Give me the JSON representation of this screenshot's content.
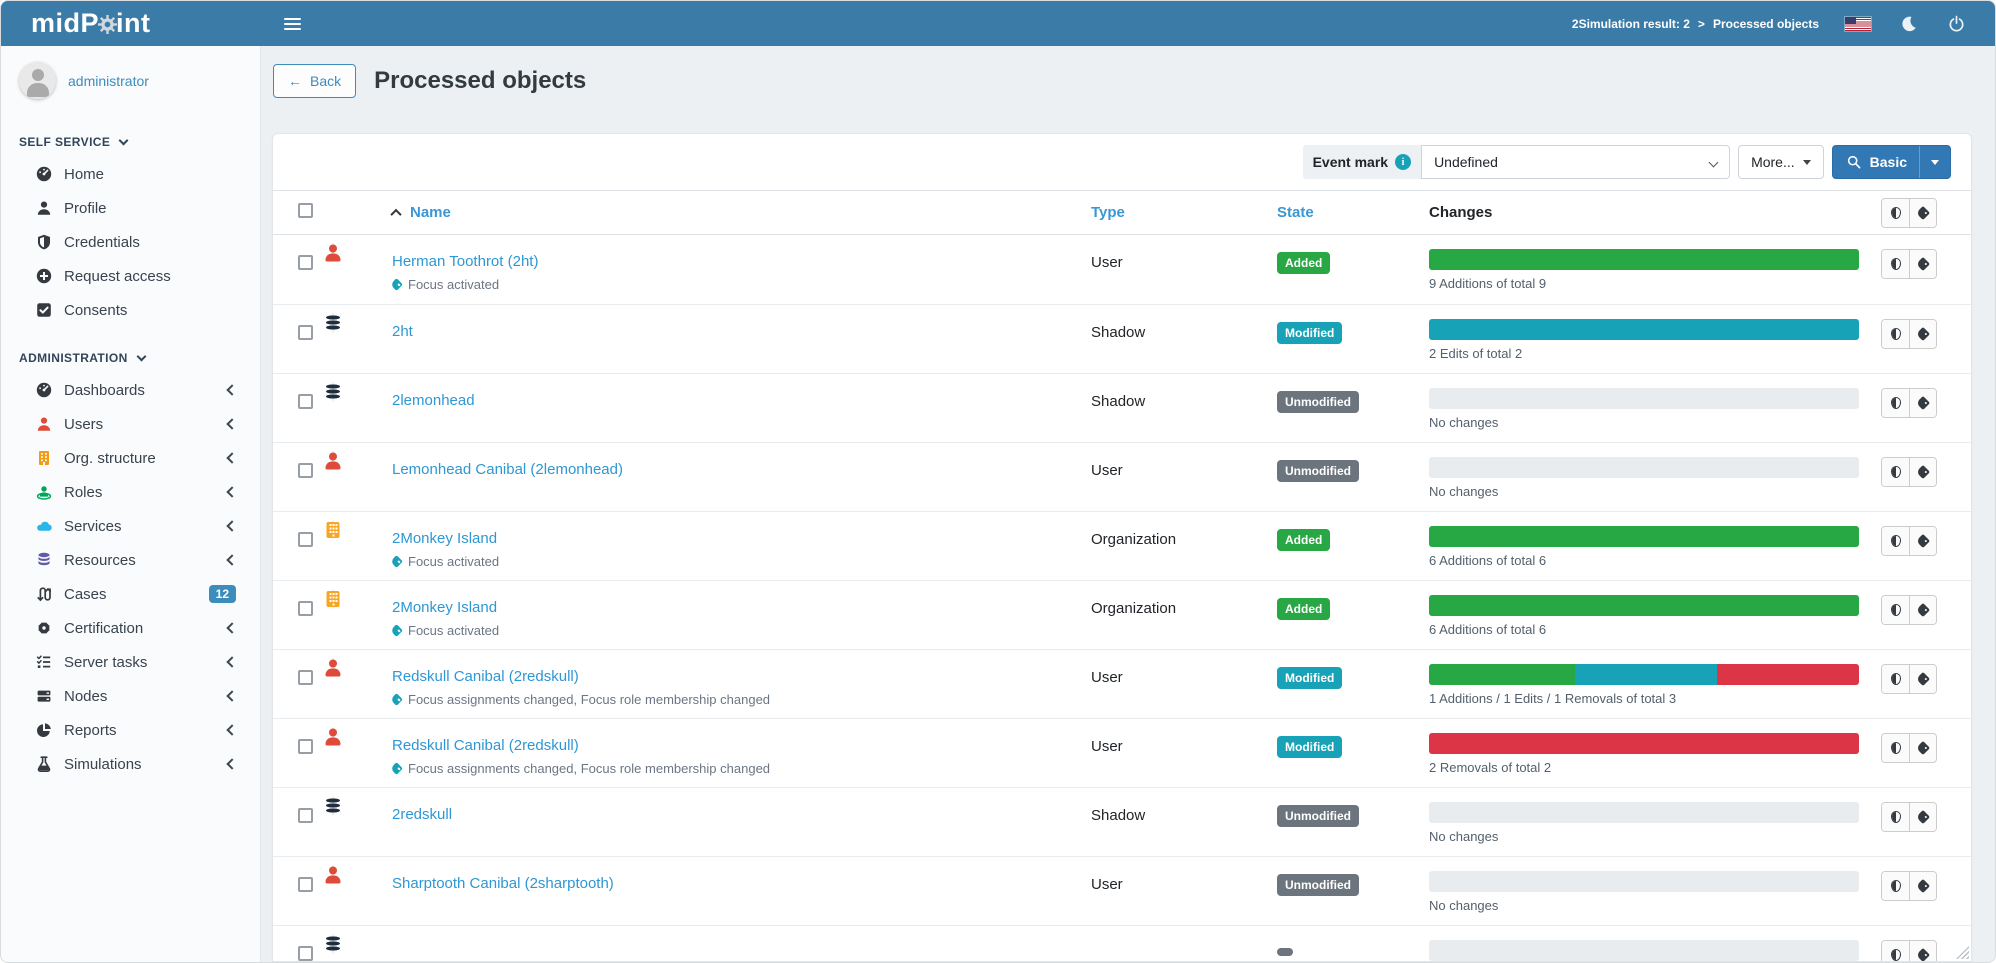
{
  "colors": {
    "topbar": "#3a7ca7",
    "accent": "#3c8dbc",
    "added": "#28a745",
    "modified": "#17a2b8",
    "removed": "#dc3545",
    "unmodified": "#6c757d",
    "empty_track": "#e9ecef"
  },
  "topbar": {
    "logo_pre": "midP",
    "logo_post": "int",
    "breadcrumb": {
      "parent": "2Simulation result: 2",
      "separator": ">",
      "current": "Processed objects"
    }
  },
  "sidebar": {
    "user": "administrator",
    "sections": [
      {
        "label": "SELF SERVICE",
        "items": [
          {
            "label": "Home",
            "icon": "dashboard-icon"
          },
          {
            "label": "Profile",
            "icon": "user-icon"
          },
          {
            "label": "Credentials",
            "icon": "shield-icon"
          },
          {
            "label": "Request access",
            "icon": "plus-circle-icon"
          },
          {
            "label": "Consents",
            "icon": "check-square-icon"
          }
        ]
      },
      {
        "label": "ADMINISTRATION",
        "items": [
          {
            "label": "Dashboards",
            "icon": "dashboard-icon",
            "expandable": true
          },
          {
            "label": "Users",
            "icon": "users-icon",
            "expandable": true
          },
          {
            "label": "Org. structure",
            "icon": "building-icon",
            "expandable": true
          },
          {
            "label": "Roles",
            "icon": "roles-icon",
            "expandable": true
          },
          {
            "label": "Services",
            "icon": "cloud-icon",
            "expandable": true
          },
          {
            "label": "Resources",
            "icon": "database-icon",
            "expandable": true
          },
          {
            "label": "Cases",
            "icon": "cases-icon",
            "badge": "12"
          },
          {
            "label": "Certification",
            "icon": "certification-icon",
            "expandable": true
          },
          {
            "label": "Server tasks",
            "icon": "tasks-icon",
            "expandable": true
          },
          {
            "label": "Nodes",
            "icon": "server-icon",
            "expandable": true
          },
          {
            "label": "Reports",
            "icon": "pie-chart-icon",
            "expandable": true
          },
          {
            "label": "Simulations",
            "icon": "flask-icon",
            "expandable": true
          }
        ]
      }
    ]
  },
  "page": {
    "back_label": "Back",
    "title": "Processed objects"
  },
  "filter": {
    "event_mark_label": "Event mark",
    "selected_value": "Undefined",
    "more_label": "More...",
    "search_mode_label": "Basic"
  },
  "table": {
    "headers": {
      "name": "Name",
      "type": "Type",
      "state": "State",
      "changes": "Changes"
    },
    "rows": [
      {
        "name": "Herman Toothrot (2ht)",
        "icon": "user",
        "subtitle": "Focus activated",
        "has_subtitle": "true",
        "type": "User",
        "state": "Added",
        "state_kind": "added",
        "bar": [
          {
            "color": "#28a745",
            "pct": 100
          }
        ],
        "caption": "9 Additions of total 9"
      },
      {
        "name": "2ht",
        "icon": "shadow",
        "subtitle": "",
        "has_subtitle": "false",
        "type": "Shadow",
        "state": "Modified",
        "state_kind": "modified",
        "bar": [
          {
            "color": "#17a2b8",
            "pct": 100
          }
        ],
        "caption": "2 Edits of total 2"
      },
      {
        "name": "2lemonhead",
        "icon": "shadow",
        "subtitle": "",
        "has_subtitle": "false",
        "type": "Shadow",
        "state": "Unmodified",
        "state_kind": "unmodified",
        "bar": [],
        "caption": "No changes"
      },
      {
        "name": "Lemonhead Canibal (2lemonhead)",
        "icon": "user",
        "subtitle": "",
        "has_subtitle": "false",
        "type": "User",
        "state": "Unmodified",
        "state_kind": "unmodified",
        "bar": [],
        "caption": "No changes"
      },
      {
        "name": "2Monkey Island",
        "icon": "org",
        "subtitle": "Focus activated",
        "has_subtitle": "true",
        "type": "Organization",
        "state": "Added",
        "state_kind": "added",
        "bar": [
          {
            "color": "#28a745",
            "pct": 100
          }
        ],
        "caption": "6 Additions of total 6"
      },
      {
        "name": "2Monkey Island",
        "icon": "org",
        "subtitle": "Focus activated",
        "has_subtitle": "true",
        "type": "Organization",
        "state": "Added",
        "state_kind": "added",
        "bar": [
          {
            "color": "#28a745",
            "pct": 100
          }
        ],
        "caption": "6 Additions of total 6"
      },
      {
        "name": "Redskull Canibal (2redskull)",
        "icon": "user",
        "subtitle": "Focus assignments changed, Focus role membership changed",
        "has_subtitle": "true",
        "type": "User",
        "state": "Modified",
        "state_kind": "modified",
        "bar": [
          {
            "color": "#28a745",
            "pct": 34
          },
          {
            "color": "#17a2b8",
            "pct": 33
          },
          {
            "color": "#dc3545",
            "pct": 33
          }
        ],
        "caption": "1 Additions / 1 Edits / 1 Removals of total 3"
      },
      {
        "name": "Redskull Canibal (2redskull)",
        "icon": "user",
        "subtitle": "Focus assignments changed, Focus role membership changed",
        "has_subtitle": "true",
        "type": "User",
        "state": "Modified",
        "state_kind": "modified",
        "bar": [
          {
            "color": "#dc3545",
            "pct": 100
          }
        ],
        "caption": "2 Removals of total 2"
      },
      {
        "name": "2redskull",
        "icon": "shadow",
        "subtitle": "",
        "has_subtitle": "false",
        "type": "Shadow",
        "state": "Unmodified",
        "state_kind": "unmodified",
        "bar": [],
        "caption": "No changes"
      },
      {
        "name": "Sharptooth Canibal (2sharptooth)",
        "icon": "user",
        "subtitle": "",
        "has_subtitle": "false",
        "type": "User",
        "state": "Unmodified",
        "state_kind": "unmodified",
        "bar": [],
        "caption": "No changes"
      },
      {
        "name": "",
        "icon": "shadow",
        "subtitle": "",
        "has_subtitle": "false",
        "type": "",
        "state": "",
        "state_kind": "unmodified",
        "bar": [],
        "caption": ""
      }
    ]
  }
}
